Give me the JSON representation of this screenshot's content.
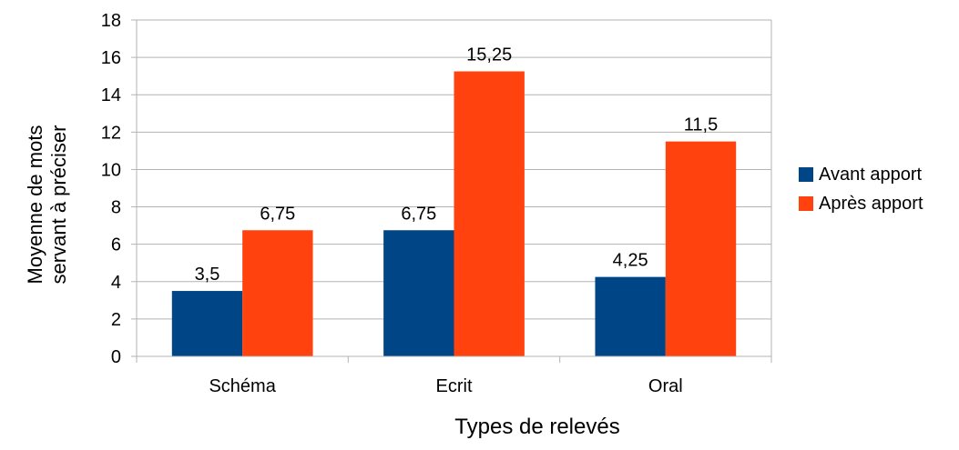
{
  "chart_data": {
    "type": "bar",
    "categories": [
      "Schéma",
      "Ecrit",
      "Oral"
    ],
    "series": [
      {
        "name": "Avant apport",
        "values": [
          3.5,
          6.75,
          4.25
        ],
        "labels": [
          "3,5",
          "6,75",
          "4,25"
        ],
        "color": "#004586"
      },
      {
        "name": "Après apport",
        "values": [
          6.75,
          15.25,
          11.5
        ],
        "labels": [
          "6,75",
          "15,25",
          "11,5"
        ],
        "color": "#ff420e"
      }
    ],
    "xlabel": "Types de relevés",
    "ylabel_lines": [
      "Moyenne de mots",
      "servant à préciser"
    ],
    "ylim": [
      0,
      18
    ],
    "yticks": [
      0,
      2,
      4,
      6,
      8,
      10,
      12,
      14,
      16,
      18
    ],
    "grid": true,
    "grid_color": "#b3b3b3",
    "legend_position": "right"
  }
}
